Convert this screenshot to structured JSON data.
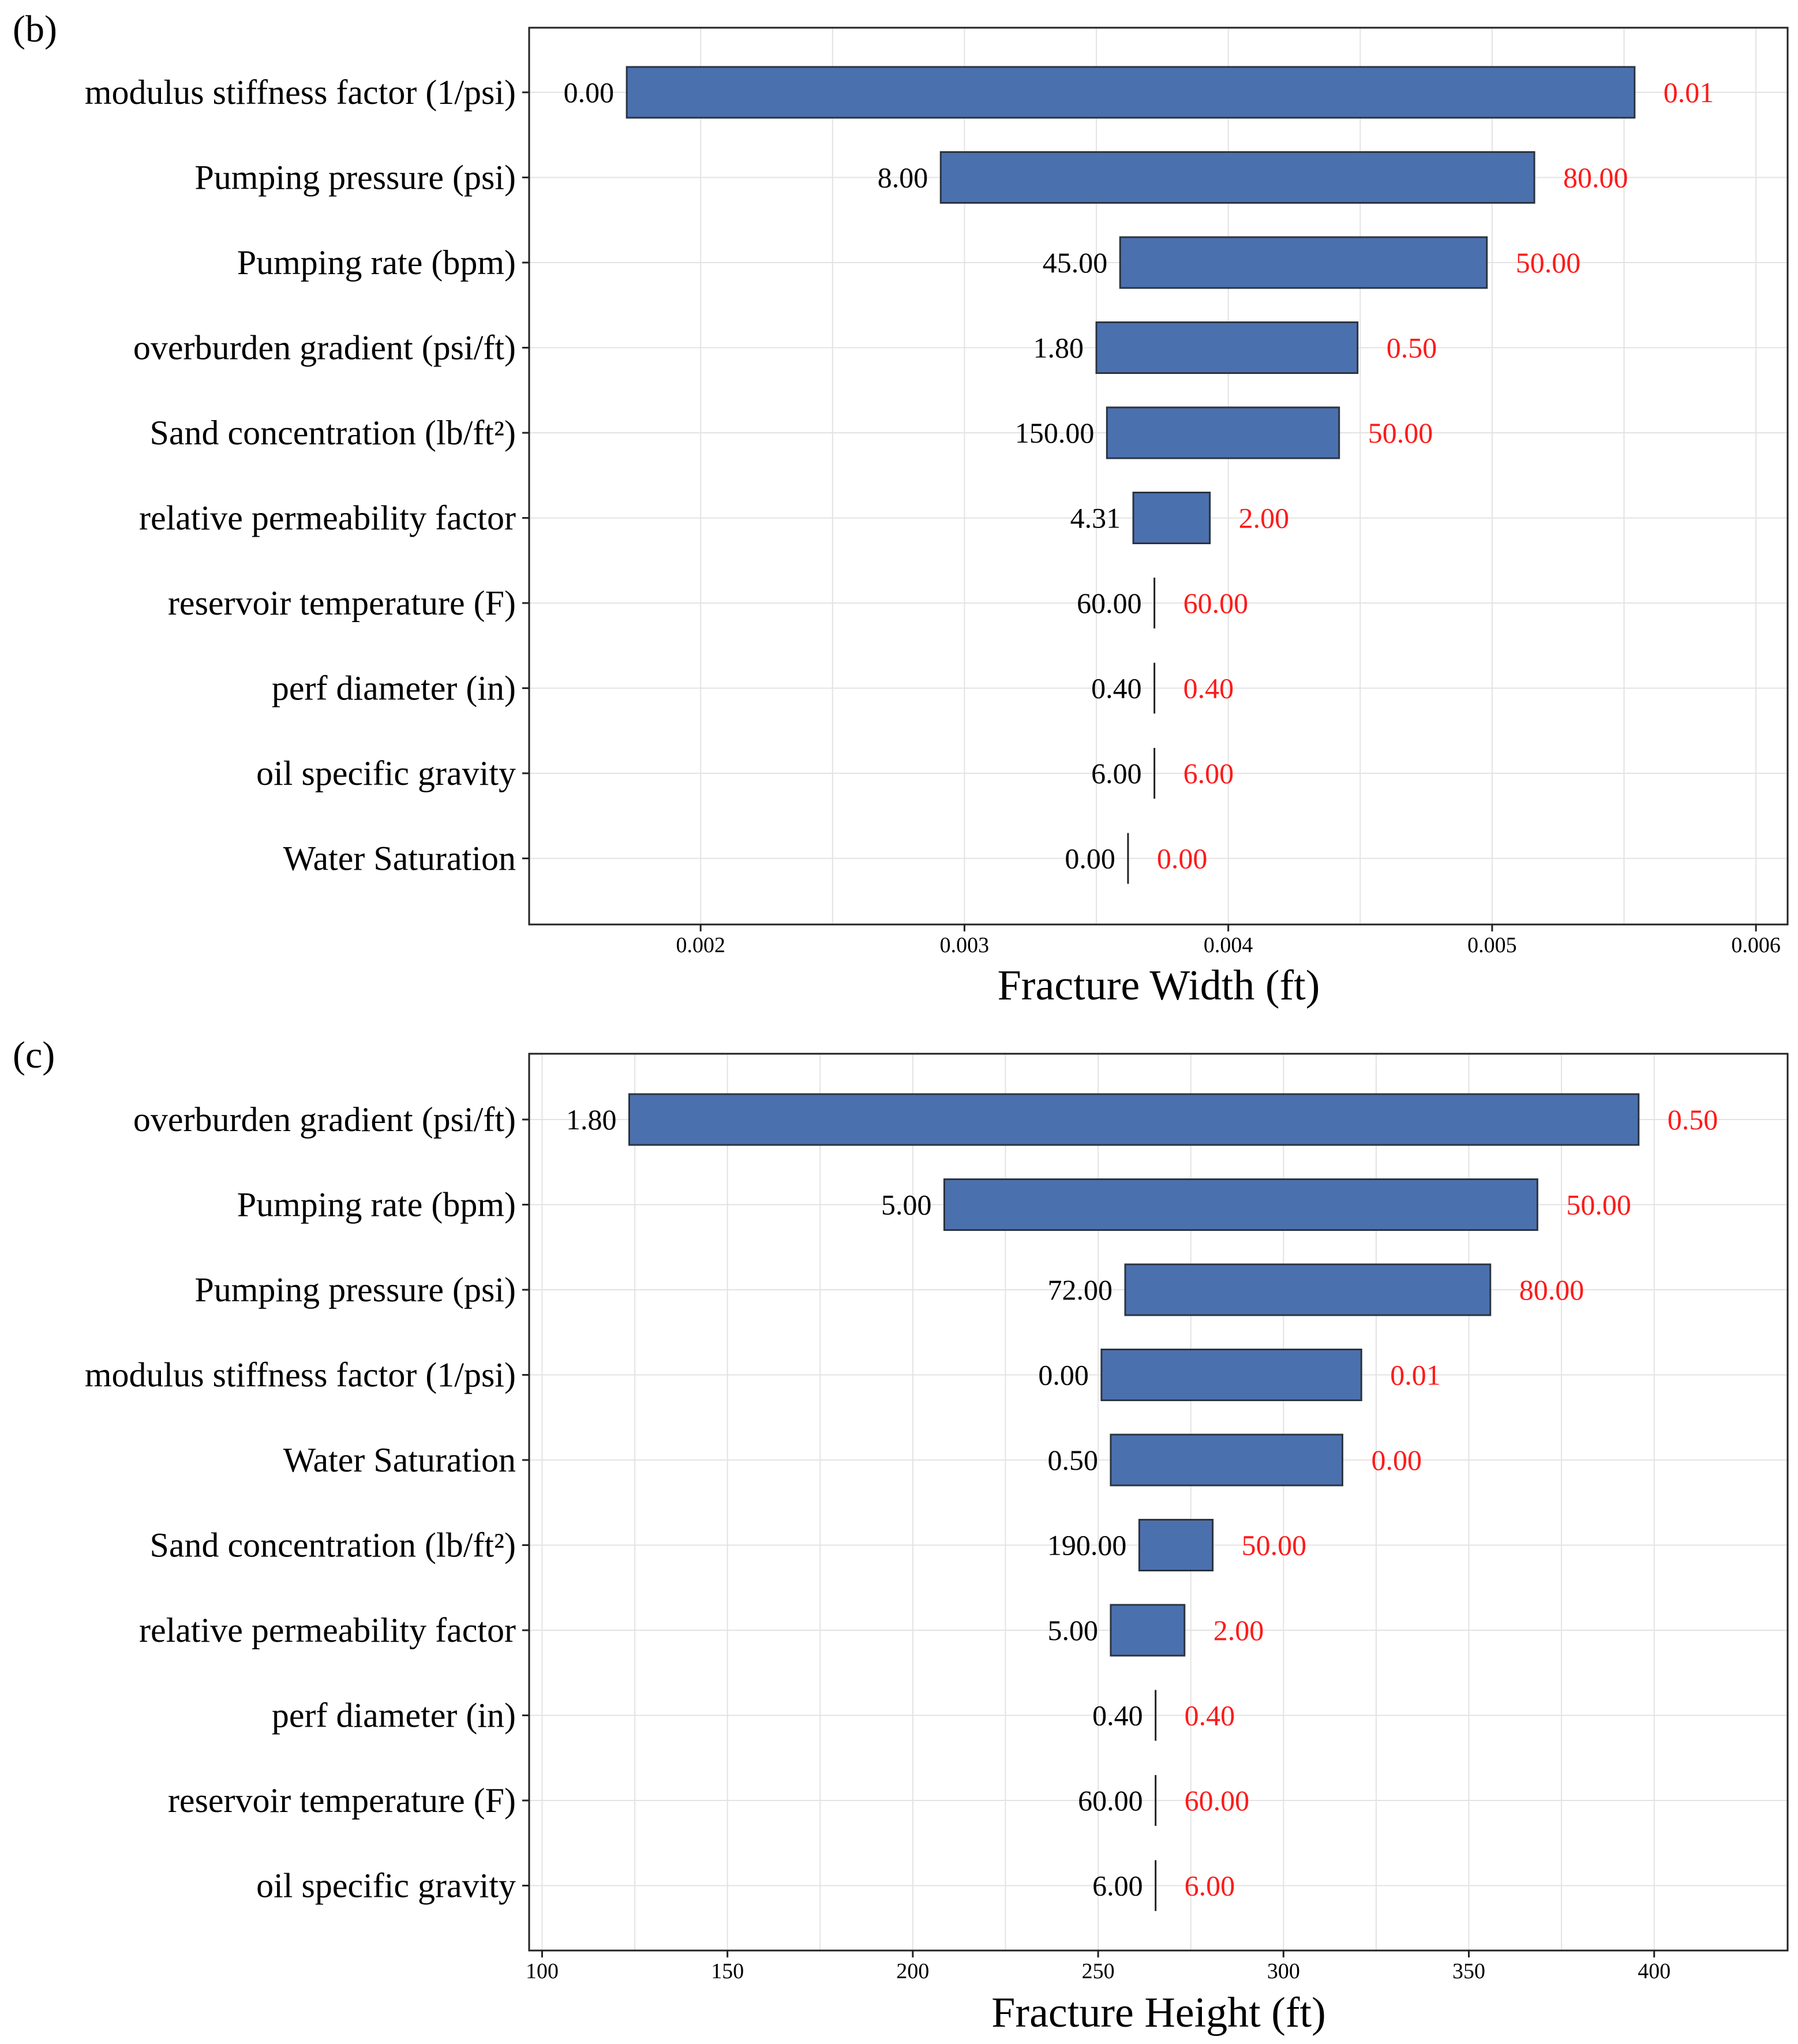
{
  "colors": {
    "bar": "#4b70ae",
    "high_label": "#ff1a1a",
    "low_label": "#000000",
    "grid": "#e3e3e3"
  },
  "chart_data": [
    {
      "type": "tornado",
      "panel_label": "(b)",
      "xlabel": "Fracture Width (ft)",
      "xlim": [
        0.00135,
        0.00612
      ],
      "xticks": [
        0.002,
        0.003,
        0.004,
        0.005,
        0.006
      ],
      "xtick_labels": [
        "0.002",
        "0.003",
        "0.004",
        "0.005",
        "0.006"
      ],
      "bars": [
        {
          "label": "modulus stiffness factor (1/psi)",
          "start": 0.00172,
          "end": 0.00554,
          "low_label": "0.00",
          "high_label": "0.01"
        },
        {
          "label": "Pumping pressure (psi)",
          "start": 0.00291,
          "end": 0.00516,
          "low_label": "8.00",
          "high_label": "80.00"
        },
        {
          "label": "Pumping rate (bpm)",
          "start": 0.00359,
          "end": 0.00498,
          "low_label": "45.00",
          "high_label": "50.00"
        },
        {
          "label": "overburden gradient (psi/ft)",
          "start": 0.0035,
          "end": 0.00449,
          "low_label": "1.80",
          "high_label": "0.50"
        },
        {
          "label": "Sand concentration (lb/ft²)",
          "start": 0.00354,
          "end": 0.00442,
          "low_label": "150.00",
          "high_label": "50.00"
        },
        {
          "label": "relative permeability factor",
          "start": 0.00364,
          "end": 0.00393,
          "low_label": "4.31",
          "high_label": "2.00"
        },
        {
          "label": "reservoir temperature (F)",
          "start": 0.00372,
          "end": 0.00372,
          "low_label": "60.00",
          "high_label": "60.00"
        },
        {
          "label": "perf diameter (in)",
          "start": 0.00372,
          "end": 0.00372,
          "low_label": "0.40",
          "high_label": "0.40"
        },
        {
          "label": "oil specific gravity",
          "start": 0.00372,
          "end": 0.00372,
          "low_label": "6.00",
          "high_label": "6.00"
        },
        {
          "label": "Water Saturation",
          "start": 0.00362,
          "end": 0.00362,
          "low_label": "0.00",
          "high_label": "0.00"
        }
      ]
    },
    {
      "type": "tornado",
      "panel_label": "(c)",
      "xlabel": "Fracture Height (ft)",
      "xlim": [
        96.5,
        436
      ],
      "xticks": [
        100,
        150,
        200,
        250,
        300,
        350,
        400
      ],
      "xtick_labels": [
        "100",
        "150",
        "200",
        "250",
        "300",
        "350",
        "400"
      ],
      "bars": [
        {
          "label": "overburden gradient (psi/ft)",
          "start": 123.5,
          "end": 395.8,
          "low_label": "1.80",
          "high_label": "0.50"
        },
        {
          "label": "Pumping rate (bpm)",
          "start": 208.5,
          "end": 368.5,
          "low_label": "5.00",
          "high_label": "50.00"
        },
        {
          "label": "Pumping pressure (psi)",
          "start": 257.3,
          "end": 355.8,
          "low_label": "72.00",
          "high_label": "80.00"
        },
        {
          "label": "modulus stiffness factor (1/psi)",
          "start": 250.9,
          "end": 321.0,
          "low_label": "0.00",
          "high_label": "0.01"
        },
        {
          "label": "Water Saturation",
          "start": 253.4,
          "end": 315.9,
          "low_label": "0.50",
          "high_label": "0.00"
        },
        {
          "label": "Sand concentration (lb/ft²)",
          "start": 261.1,
          "end": 280.9,
          "low_label": "190.00",
          "high_label": "50.00"
        },
        {
          "label": "relative permeability factor",
          "start": 253.4,
          "end": 273.3,
          "low_label": "5.00",
          "high_label": "2.00"
        },
        {
          "label": "perf diameter (in)",
          "start": 265.5,
          "end": 265.5,
          "low_label": "0.40",
          "high_label": "0.40"
        },
        {
          "label": "reservoir temperature (F)",
          "start": 265.5,
          "end": 265.5,
          "low_label": "60.00",
          "high_label": "60.00"
        },
        {
          "label": "oil specific gravity",
          "start": 265.5,
          "end": 265.5,
          "low_label": "6.00",
          "high_label": "6.00"
        }
      ]
    }
  ]
}
